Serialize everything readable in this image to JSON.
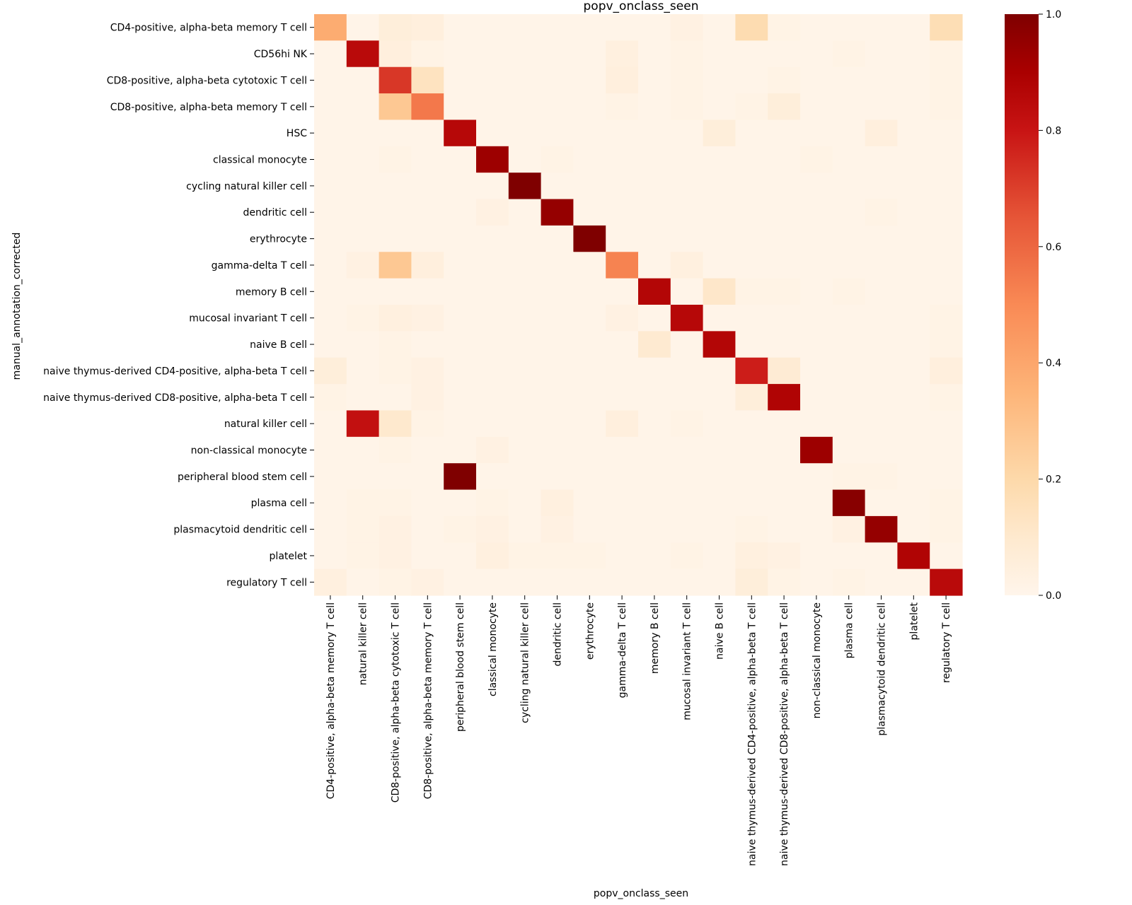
{
  "chart_data": {
    "type": "heatmap",
    "title": "popv_onclass_seen",
    "xlabel": "popv_onclass_seen",
    "ylabel": "manual_annotation_corrected",
    "rows": [
      "CD4-positive, alpha-beta memory T cell",
      "CD56hi NK",
      "CD8-positive, alpha-beta cytotoxic T cell",
      "CD8-positive, alpha-beta memory T cell",
      "HSC",
      "classical monocyte",
      "cycling natural killer cell",
      "dendritic cell",
      "erythrocyte",
      "gamma-delta T cell",
      "memory B cell",
      "mucosal invariant T cell",
      "naive B cell",
      "naive thymus-derived CD4-positive, alpha-beta T cell",
      "naive thymus-derived CD8-positive, alpha-beta T cell",
      "natural killer cell",
      "non-classical monocyte",
      "peripheral blood stem cell",
      "plasma cell",
      "plasmacytoid dendritic cell",
      "platelet",
      "regulatory T cell"
    ],
    "columns": [
      "CD4-positive, alpha-beta memory T cell",
      "natural killer cell",
      "CD8-positive, alpha-beta cytotoxic T cell",
      "CD8-positive, alpha-beta memory T cell",
      "peripheral blood stem cell",
      "classical monocyte",
      "cycling natural killer cell",
      "dendritic cell",
      "erythrocyte",
      "gamma-delta T cell",
      "memory B cell",
      "mucosal invariant T cell",
      "naive B cell",
      "naive thymus-derived CD4-positive, alpha-beta T cell",
      "naive thymus-derived CD8-positive, alpha-beta T cell",
      "non-classical monocyte",
      "plasma cell",
      "plasmacytoid dendritic cell",
      "platelet",
      "regulatory T cell"
    ],
    "values": [
      [
        0.38,
        0.01,
        0.06,
        0.05,
        0.01,
        0.01,
        0.01,
        0.01,
        0.01,
        0.01,
        0.01,
        0.03,
        0.01,
        0.18,
        0.02,
        0.01,
        0.01,
        0.01,
        0.01,
        0.17
      ],
      [
        0.01,
        0.85,
        0.05,
        0.02,
        0.01,
        0.01,
        0.01,
        0.01,
        0.01,
        0.04,
        0.01,
        0.02,
        0.01,
        0.01,
        0.01,
        0.01,
        0.02,
        0.01,
        0.01,
        0.02
      ],
      [
        0.01,
        0.01,
        0.72,
        0.14,
        0.01,
        0.01,
        0.01,
        0.01,
        0.01,
        0.05,
        0.01,
        0.02,
        0.01,
        0.01,
        0.02,
        0.01,
        0.01,
        0.01,
        0.01,
        0.02
      ],
      [
        0.01,
        0.01,
        0.27,
        0.55,
        0.01,
        0.01,
        0.01,
        0.01,
        0.01,
        0.02,
        0.01,
        0.02,
        0.01,
        0.02,
        0.06,
        0.01,
        0.01,
        0.01,
        0.01,
        0.02
      ],
      [
        0.01,
        0.01,
        0.01,
        0.01,
        0.86,
        0.01,
        0.01,
        0.01,
        0.01,
        0.01,
        0.01,
        0.01,
        0.06,
        0.01,
        0.01,
        0.01,
        0.01,
        0.05,
        0.01,
        0.01
      ],
      [
        0.01,
        0.01,
        0.02,
        0.01,
        0.01,
        0.93,
        0.01,
        0.02,
        0.01,
        0.01,
        0.01,
        0.01,
        0.01,
        0.01,
        0.01,
        0.02,
        0.01,
        0.01,
        0.01,
        0.01
      ],
      [
        0.01,
        0.01,
        0.01,
        0.01,
        0.01,
        0.01,
        1.0,
        0.01,
        0.01,
        0.01,
        0.01,
        0.01,
        0.01,
        0.01,
        0.01,
        0.01,
        0.01,
        0.01,
        0.01,
        0.01
      ],
      [
        0.01,
        0.01,
        0.01,
        0.01,
        0.01,
        0.03,
        0.01,
        0.95,
        0.01,
        0.01,
        0.01,
        0.01,
        0.01,
        0.01,
        0.01,
        0.01,
        0.01,
        0.02,
        0.01,
        0.01
      ],
      [
        0.01,
        0.01,
        0.01,
        0.01,
        0.01,
        0.01,
        0.01,
        0.01,
        1.0,
        0.01,
        0.01,
        0.01,
        0.01,
        0.01,
        0.01,
        0.01,
        0.01,
        0.01,
        0.01,
        0.01
      ],
      [
        0.01,
        0.03,
        0.27,
        0.05,
        0.01,
        0.01,
        0.01,
        0.01,
        0.01,
        0.52,
        0.01,
        0.04,
        0.01,
        0.01,
        0.01,
        0.01,
        0.01,
        0.01,
        0.01,
        0.01
      ],
      [
        0.01,
        0.01,
        0.01,
        0.01,
        0.01,
        0.01,
        0.01,
        0.01,
        0.01,
        0.01,
        0.87,
        0.01,
        0.11,
        0.02,
        0.02,
        0.01,
        0.02,
        0.01,
        0.01,
        0.01
      ],
      [
        0.01,
        0.02,
        0.04,
        0.03,
        0.01,
        0.01,
        0.01,
        0.01,
        0.01,
        0.03,
        0.01,
        0.86,
        0.01,
        0.01,
        0.01,
        0.01,
        0.01,
        0.01,
        0.01,
        0.02
      ],
      [
        0.01,
        0.01,
        0.02,
        0.01,
        0.01,
        0.01,
        0.01,
        0.01,
        0.01,
        0.01,
        0.09,
        0.01,
        0.87,
        0.01,
        0.01,
        0.01,
        0.01,
        0.01,
        0.01,
        0.02
      ],
      [
        0.06,
        0.01,
        0.02,
        0.03,
        0.01,
        0.01,
        0.01,
        0.01,
        0.01,
        0.01,
        0.01,
        0.01,
        0.01,
        0.78,
        0.08,
        0.01,
        0.01,
        0.01,
        0.01,
        0.05
      ],
      [
        0.02,
        0.01,
        0.01,
        0.03,
        0.01,
        0.01,
        0.01,
        0.01,
        0.01,
        0.01,
        0.01,
        0.01,
        0.01,
        0.06,
        0.88,
        0.01,
        0.01,
        0.01,
        0.01,
        0.02
      ],
      [
        0.01,
        0.82,
        0.1,
        0.02,
        0.01,
        0.01,
        0.01,
        0.01,
        0.01,
        0.05,
        0.01,
        0.02,
        0.01,
        0.01,
        0.01,
        0.01,
        0.01,
        0.01,
        0.01,
        0.01
      ],
      [
        0.01,
        0.01,
        0.02,
        0.01,
        0.01,
        0.03,
        0.01,
        0.01,
        0.01,
        0.01,
        0.01,
        0.01,
        0.01,
        0.01,
        0.01,
        0.93,
        0.01,
        0.01,
        0.01,
        0.01
      ],
      [
        0.01,
        0.01,
        0.01,
        0.01,
        1.0,
        0.01,
        0.01,
        0.01,
        0.01,
        0.01,
        0.01,
        0.01,
        0.01,
        0.01,
        0.01,
        0.01,
        0.02,
        0.02,
        0.01,
        0.01
      ],
      [
        0.01,
        0.02,
        0.02,
        0.01,
        0.01,
        0.02,
        0.01,
        0.04,
        0.01,
        0.01,
        0.01,
        0.01,
        0.01,
        0.01,
        0.01,
        0.01,
        0.98,
        0.01,
        0.01,
        0.02
      ],
      [
        0.01,
        0.02,
        0.03,
        0.01,
        0.02,
        0.03,
        0.01,
        0.03,
        0.01,
        0.01,
        0.01,
        0.01,
        0.01,
        0.02,
        0.01,
        0.01,
        0.03,
        0.95,
        0.01,
        0.02
      ],
      [
        0.01,
        0.02,
        0.03,
        0.01,
        0.01,
        0.04,
        0.02,
        0.02,
        0.02,
        0.01,
        0.01,
        0.02,
        0.01,
        0.04,
        0.03,
        0.01,
        0.01,
        0.01,
        0.88,
        0.01
      ],
      [
        0.04,
        0.01,
        0.02,
        0.03,
        0.01,
        0.01,
        0.01,
        0.01,
        0.01,
        0.01,
        0.01,
        0.01,
        0.01,
        0.06,
        0.02,
        0.01,
        0.02,
        0.01,
        0.01,
        0.85
      ]
    ],
    "vmin": 0.0,
    "vmax": 1.0,
    "colormap": "OrRd",
    "colorbar_ticks": [
      "0.0",
      "0.2",
      "0.4",
      "0.6",
      "0.8",
      "1.0"
    ],
    "colorbar_tick_values": [
      0.0,
      0.2,
      0.4,
      0.6,
      0.8,
      1.0
    ]
  }
}
